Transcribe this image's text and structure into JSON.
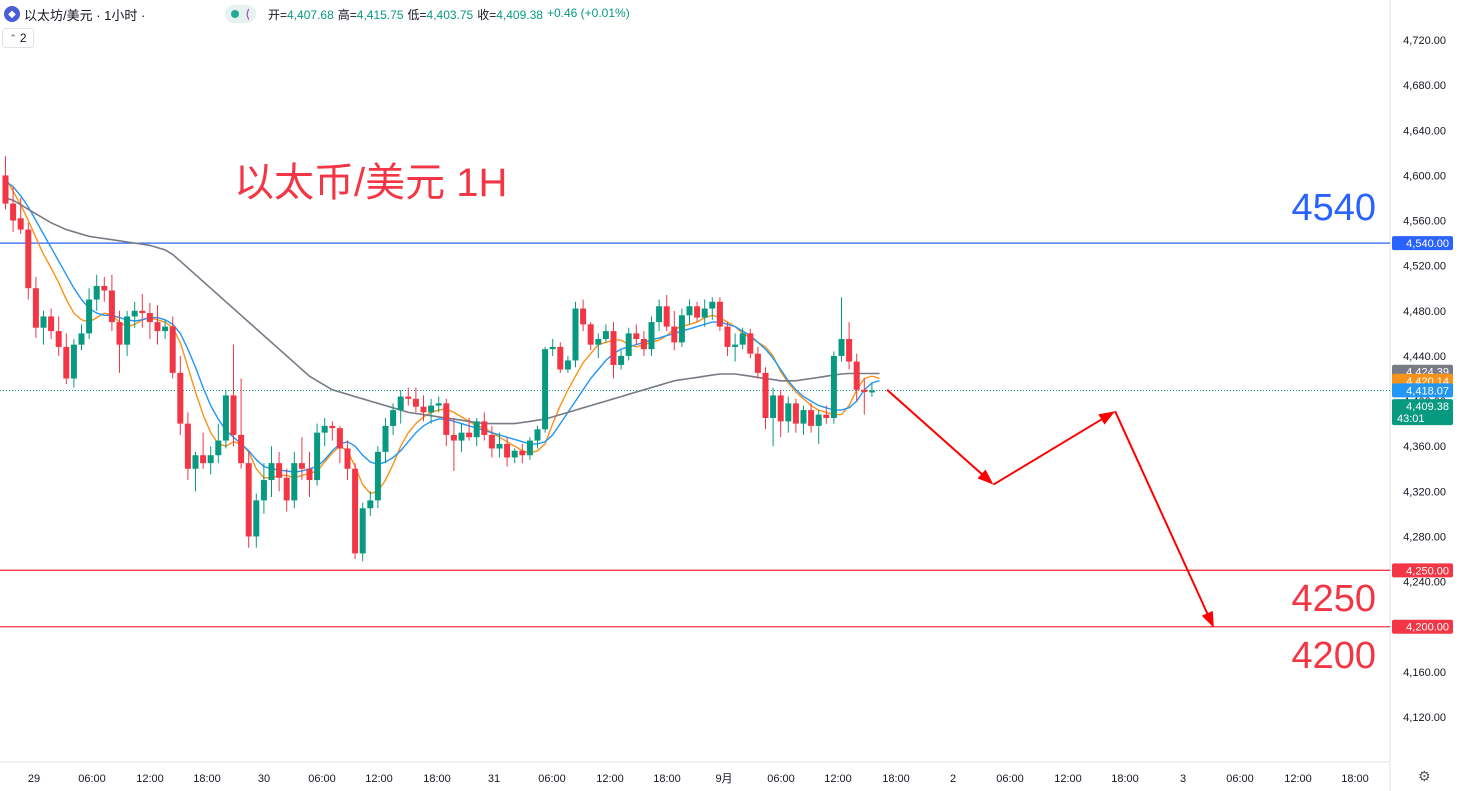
{
  "header": {
    "symbol_title": "以太坊/美元 · 1小时 ·",
    "ohlc": [
      {
        "label": "开=",
        "value": "4,407.68"
      },
      {
        "label": "高=",
        "value": "4,415.75"
      },
      {
        "label": "低=",
        "value": "4,403.75"
      },
      {
        "label": "收=",
        "value": "4,409.38"
      },
      {
        "label": "",
        "value": "+0.46 (+0.01%)"
      }
    ],
    "indicator_count": "2"
  },
  "annotations": {
    "title": "以太币/美元 1H",
    "level_high": "4540",
    "level_low1": "4250",
    "level_low2": "4200"
  },
  "colors": {
    "up": "#089981",
    "down": "#f23645",
    "resistance": "#2962ff",
    "support": "#f23645",
    "ma_fast": "#f7931a",
    "ma_mid": "#2196f3",
    "ma_slow": "#787b86",
    "arrow": "#ff0000"
  },
  "chart_data": {
    "type": "candlestick",
    "title": "以太币/美元 1H",
    "ylim": [
      4090,
      4750
    ],
    "y_ticks": [
      "4,120.00",
      "4,160.00",
      "4,200.00",
      "4,240.00",
      "4,280.00",
      "4,320.00",
      "4,360.00",
      "4,400.00",
      "4,440.00",
      "4,480.00",
      "4,520.00",
      "4,560.00",
      "4,600.00",
      "4,640.00",
      "4,680.00",
      "4,720.00"
    ],
    "x_labels": [
      "29",
      "06:00",
      "12:00",
      "18:00",
      "30",
      "06:00",
      "12:00",
      "18:00",
      "31",
      "06:00",
      "12:00",
      "18:00",
      "9月",
      "06:00",
      "12:00",
      "18:00",
      "2",
      "06:00",
      "12:00",
      "18:00",
      "3",
      "06:00",
      "12:00",
      "18:00"
    ],
    "bars_total": 160,
    "horizontal_levels": [
      {
        "label": "4,540.00",
        "value": 4540,
        "color": "#2962ff"
      },
      {
        "label": "4,250.00",
        "value": 4250,
        "color": "#f23645"
      },
      {
        "label": "4,200.00",
        "value": 4200,
        "color": "#f23645"
      }
    ],
    "price_tags": [
      {
        "label": "4,424.39",
        "value": 4424.39,
        "color": "#787b86"
      },
      {
        "label": "4,420.14",
        "value": 4420.14,
        "color": "#f7931a"
      },
      {
        "label": "4,418.07",
        "value": 4418.07,
        "color": "#2196f3"
      },
      {
        "label": "4,409.38",
        "sub": "43:01",
        "value": 4409.38,
        "color": "#089981"
      }
    ],
    "last_price": 4409.38,
    "candles": [
      [
        4600,
        4617,
        4570,
        4575
      ],
      [
        4575,
        4590,
        4550,
        4560
      ],
      [
        4562,
        4580,
        4548,
        4552
      ],
      [
        4552,
        4558,
        4490,
        4500
      ],
      [
        4500,
        4510,
        4456,
        4465
      ],
      [
        4465,
        4480,
        4450,
        4475
      ],
      [
        4475,
        4482,
        4455,
        4462
      ],
      [
        4462,
        4475,
        4440,
        4448
      ],
      [
        4448,
        4460,
        4415,
        4420
      ],
      [
        4420,
        4455,
        4412,
        4450
      ],
      [
        4450,
        4468,
        4445,
        4460
      ],
      [
        4460,
        4500,
        4455,
        4490
      ],
      [
        4490,
        4512,
        4480,
        4502
      ],
      [
        4502,
        4510,
        4488,
        4498
      ],
      [
        4498,
        4512,
        4462,
        4470
      ],
      [
        4470,
        4480,
        4425,
        4450
      ],
      [
        4450,
        4480,
        4440,
        4475
      ],
      [
        4475,
        4488,
        4465,
        4480
      ],
      [
        4480,
        4495,
        4465,
        4478
      ],
      [
        4478,
        4487,
        4455,
        4470
      ],
      [
        4470,
        4485,
        4450,
        4462
      ],
      [
        4462,
        4472,
        4455,
        4466
      ],
      [
        4466,
        4475,
        4420,
        4425
      ],
      [
        4425,
        4440,
        4370,
        4380
      ],
      [
        4380,
        4390,
        4330,
        4340
      ],
      [
        4340,
        4355,
        4320,
        4352
      ],
      [
        4352,
        4372,
        4340,
        4345
      ],
      [
        4345,
        4360,
        4335,
        4352
      ],
      [
        4352,
        4380,
        4345,
        4365
      ],
      [
        4365,
        4410,
        4358,
        4405
      ],
      [
        4405,
        4450,
        4360,
        4370
      ],
      [
        4370,
        4420,
        4340,
        4345
      ],
      [
        4345,
        4355,
        4270,
        4280
      ],
      [
        4280,
        4318,
        4270,
        4312
      ],
      [
        4312,
        4345,
        4300,
        4330
      ],
      [
        4330,
        4360,
        4315,
        4345
      ],
      [
        4345,
        4355,
        4320,
        4332
      ],
      [
        4332,
        4340,
        4302,
        4312
      ],
      [
        4312,
        4355,
        4305,
        4345
      ],
      [
        4345,
        4368,
        4330,
        4340
      ],
      [
        4340,
        4355,
        4315,
        4330
      ],
      [
        4330,
        4380,
        4325,
        4372
      ],
      [
        4372,
        4385,
        4360,
        4378
      ],
      [
        4378,
        4382,
        4365,
        4376
      ],
      [
        4376,
        4378,
        4345,
        4358
      ],
      [
        4358,
        4365,
        4330,
        4340
      ],
      [
        4340,
        4345,
        4260,
        4265
      ],
      [
        4265,
        4310,
        4258,
        4305
      ],
      [
        4305,
        4320,
        4298,
        4312
      ],
      [
        4312,
        4360,
        4305,
        4355
      ],
      [
        4355,
        4385,
        4345,
        4378
      ],
      [
        4378,
        4398,
        4370,
        4392
      ],
      [
        4392,
        4410,
        4380,
        4404
      ],
      [
        4404,
        4412,
        4396,
        4402
      ],
      [
        4402,
        4412,
        4390,
        4395
      ],
      [
        4395,
        4405,
        4382,
        4390
      ],
      [
        4390,
        4402,
        4380,
        4396
      ],
      [
        4396,
        4404,
        4390,
        4398
      ],
      [
        4398,
        4402,
        4360,
        4370
      ],
      [
        4370,
        4385,
        4338,
        4365
      ],
      [
        4365,
        4380,
        4355,
        4372
      ],
      [
        4372,
        4385,
        4365,
        4368
      ],
      [
        4368,
        4385,
        4360,
        4382
      ],
      [
        4382,
        4390,
        4365,
        4370
      ],
      [
        4370,
        4378,
        4350,
        4358
      ],
      [
        4358,
        4372,
        4350,
        4362
      ],
      [
        4362,
        4368,
        4342,
        4350
      ],
      [
        4350,
        4358,
        4345,
        4356
      ],
      [
        4356,
        4362,
        4345,
        4352
      ],
      [
        4352,
        4368,
        4348,
        4365
      ],
      [
        4365,
        4378,
        4358,
        4375
      ],
      [
        4375,
        4448,
        4372,
        4446
      ],
      [
        4446,
        4455,
        4440,
        4448
      ],
      [
        4448,
        4452,
        4425,
        4428
      ],
      [
        4428,
        4440,
        4425,
        4436
      ],
      [
        4436,
        4488,
        4430,
        4482
      ],
      [
        4482,
        4490,
        4462,
        4468
      ],
      [
        4468,
        4470,
        4445,
        4450
      ],
      [
        4450,
        4460,
        4438,
        4455
      ],
      [
        4455,
        4468,
        4452,
        4462
      ],
      [
        4462,
        4470,
        4420,
        4432
      ],
      [
        4432,
        4445,
        4428,
        4440
      ],
      [
        4440,
        4465,
        4436,
        4460
      ],
      [
        4460,
        4468,
        4450,
        4455
      ],
      [
        4455,
        4462,
        4440,
        4446
      ],
      [
        4446,
        4475,
        4440,
        4470
      ],
      [
        4470,
        4490,
        4462,
        4484
      ],
      [
        4484,
        4494,
        4462,
        4466
      ],
      [
        4466,
        4480,
        4445,
        4452
      ],
      [
        4452,
        4482,
        4448,
        4476
      ],
      [
        4476,
        4490,
        4468,
        4484
      ],
      [
        4484,
        4488,
        4470,
        4474
      ],
      [
        4474,
        4490,
        4466,
        4482
      ],
      [
        4482,
        4492,
        4472,
        4488
      ],
      [
        4488,
        4492,
        4462,
        4466
      ],
      [
        4466,
        4470,
        4440,
        4448
      ],
      [
        4448,
        4460,
        4435,
        4450
      ],
      [
        4450,
        4465,
        4446,
        4460
      ],
      [
        4460,
        4464,
        4438,
        4442
      ],
      [
        4442,
        4448,
        4420,
        4425
      ],
      [
        4425,
        4430,
        4375,
        4385
      ],
      [
        4385,
        4412,
        4360,
        4405
      ],
      [
        4405,
        4410,
        4368,
        4382
      ],
      [
        4382,
        4404,
        4372,
        4398
      ],
      [
        4398,
        4402,
        4372,
        4380
      ],
      [
        4380,
        4396,
        4370,
        4392
      ],
      [
        4392,
        4398,
        4372,
        4378
      ],
      [
        4378,
        4392,
        4362,
        4388
      ],
      [
        4388,
        4396,
        4380,
        4385
      ],
      [
        4385,
        4444,
        4380,
        4440
      ],
      [
        4440,
        4492,
        4435,
        4455
      ],
      [
        4455,
        4470,
        4428,
        4435
      ],
      [
        4435,
        4442,
        4400,
        4410
      ],
      [
        4410,
        4420,
        4388,
        4408
      ],
      [
        4407.68,
        4415.75,
        4403.75,
        4409.38
      ]
    ],
    "series": [
      {
        "name": "",
        "color": "#f7931a",
        "values": [
          4598,
          4586,
          4574,
          4560,
          4545,
          4530,
          4518,
          4505,
          4490,
          4478,
          4472,
          4470,
          4474,
          4478,
          4476,
          4470,
          4466,
          4468,
          4472,
          4474,
          4472,
          4470,
          4465,
          4452,
          4430,
          4408,
          4388,
          4372,
          4362,
          4360,
          4364,
          4362,
          4355,
          4340,
          4332,
          4332,
          4334,
          4334,
          4332,
          4334,
          4336,
          4338,
          4346,
          4354,
          4360,
          4356,
          4342,
          4326,
          4318,
          4320,
          4330,
          4344,
          4360,
          4372,
          4380,
          4386,
          4390,
          4392,
          4393,
          4390,
          4386,
          4382,
          4378,
          4376,
          4372,
          4368,
          4364,
          4360,
          4356,
          4354,
          4356,
          4362,
          4380,
          4396,
          4410,
          4422,
          4434,
          4442,
          4450,
          4452,
          4454,
          4454,
          4450,
          4448,
          4450,
          4452,
          4454,
          4458,
          4464,
          4466,
          4468,
          4470,
          4474,
          4476,
          4474,
          4470,
          4466,
          4460,
          4456,
          4452,
          4448,
          4440,
          4426,
          4416,
          4408,
          4402,
          4396,
          4392,
          4390,
          4388,
          4388,
          4396,
          4410,
          4420,
          4422,
          4420.14
        ]
      },
      {
        "name": "",
        "color": "#2196f3",
        "values": [
          4595,
          4590,
          4582,
          4572,
          4560,
          4548,
          4536,
          4524,
          4512,
          4500,
          4490,
          4482,
          4478,
          4476,
          4476,
          4474,
          4472,
          4471,
          4472,
          4474,
          4474,
          4472,
          4468,
          4460,
          4446,
          4430,
          4412,
          4396,
          4384,
          4374,
          4368,
          4362,
          4356,
          4348,
          4342,
          4340,
          4339,
          4338,
          4337,
          4338,
          4340,
          4342,
          4348,
          4356,
          4362,
          4364,
          4360,
          4352,
          4346,
          4344,
          4346,
          4350,
          4356,
          4364,
          4372,
          4378,
          4382,
          4384,
          4384,
          4382,
          4380,
          4378,
          4376,
          4374,
          4372,
          4370,
          4368,
          4366,
          4364,
          4362,
          4362,
          4364,
          4370,
          4380,
          4390,
          4400,
          4410,
          4420,
          4428,
          4436,
          4442,
          4446,
          4448,
          4450,
          4452,
          4454,
          4456,
          4458,
          4460,
          4462,
          4464,
          4466,
          4468,
          4470,
          4470,
          4468,
          4466,
          4462,
          4458,
          4452,
          4446,
          4438,
          4428,
          4418,
          4410,
          4404,
          4400,
          4396,
          4394,
          4392,
          4392,
          4394,
          4400,
          4410,
          4416,
          4418.07
        ]
      },
      {
        "name": "",
        "color": "#787b86",
        "values": [
          4580,
          4578,
          4574,
          4570,
          4566,
          4562,
          4558,
          4555,
          4552,
          4550,
          4548,
          4546,
          4545,
          4544,
          4543,
          4542,
          4541,
          4540,
          4539,
          4538,
          4536,
          4534,
          4530,
          4524,
          4518,
          4512,
          4506,
          4500,
          4494,
          4488,
          4482,
          4476,
          4470,
          4464,
          4458,
          4452,
          4446,
          4440,
          4434,
          4428,
          4422,
          4418,
          4414,
          4410,
          4408,
          4406,
          4404,
          4402,
          4400,
          4398,
          4396,
          4394,
          4392,
          4390,
          4389,
          4388,
          4387,
          4386,
          4385,
          4384,
          4383,
          4382,
          4381,
          4380,
          4380,
          4380,
          4380,
          4380,
          4381,
          4382,
          4383,
          4384,
          4386,
          4388,
          4390,
          4392,
          4394,
          4396,
          4398,
          4400,
          4402,
          4404,
          4406,
          4408,
          4410,
          4412,
          4414,
          4416,
          4418,
          4419,
          4420,
          4421,
          4422,
          4423,
          4424,
          4424,
          4424,
          4423,
          4422,
          4421,
          4420,
          4419,
          4418,
          4418,
          4418,
          4419,
          4420,
          4421,
          4422,
          4423,
          4424,
          4424.39,
          4424.39,
          4424.39,
          4424.39,
          4424.39
        ]
      }
    ],
    "projection_path": [
      {
        "bar": 116,
        "value": 4410
      },
      {
        "bar": 130,
        "value": 4326
      },
      {
        "bar": 146,
        "value": 4391
      },
      {
        "bar": 159,
        "value": 4199
      }
    ]
  }
}
